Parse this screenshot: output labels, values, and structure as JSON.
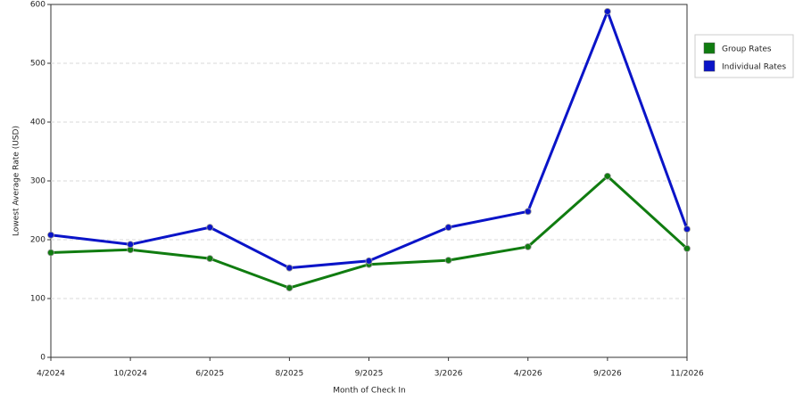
{
  "chart_data": {
    "type": "line",
    "x_label": "Month of Check In",
    "y_label": "Lowest Average Rate (USD)",
    "categories": [
      "4/2024",
      "10/2024",
      "6/2025",
      "8/2025",
      "9/2025",
      "3/2026",
      "4/2026",
      "9/2026",
      "11/2026"
    ],
    "series": [
      {
        "name": "Group Rates",
        "color": "#107c10",
        "values": [
          178,
          183,
          168,
          118,
          158,
          165,
          188,
          308,
          185
        ]
      },
      {
        "name": "Individual Rates",
        "color": "#0a14c8",
        "values": [
          208,
          192,
          221,
          152,
          164,
          221,
          248,
          588,
          218
        ]
      }
    ],
    "ylim": [
      0,
      600
    ],
    "yticks": [
      0,
      100,
      200,
      300,
      400,
      500,
      600
    ],
    "grid": true,
    "legend": "right"
  }
}
